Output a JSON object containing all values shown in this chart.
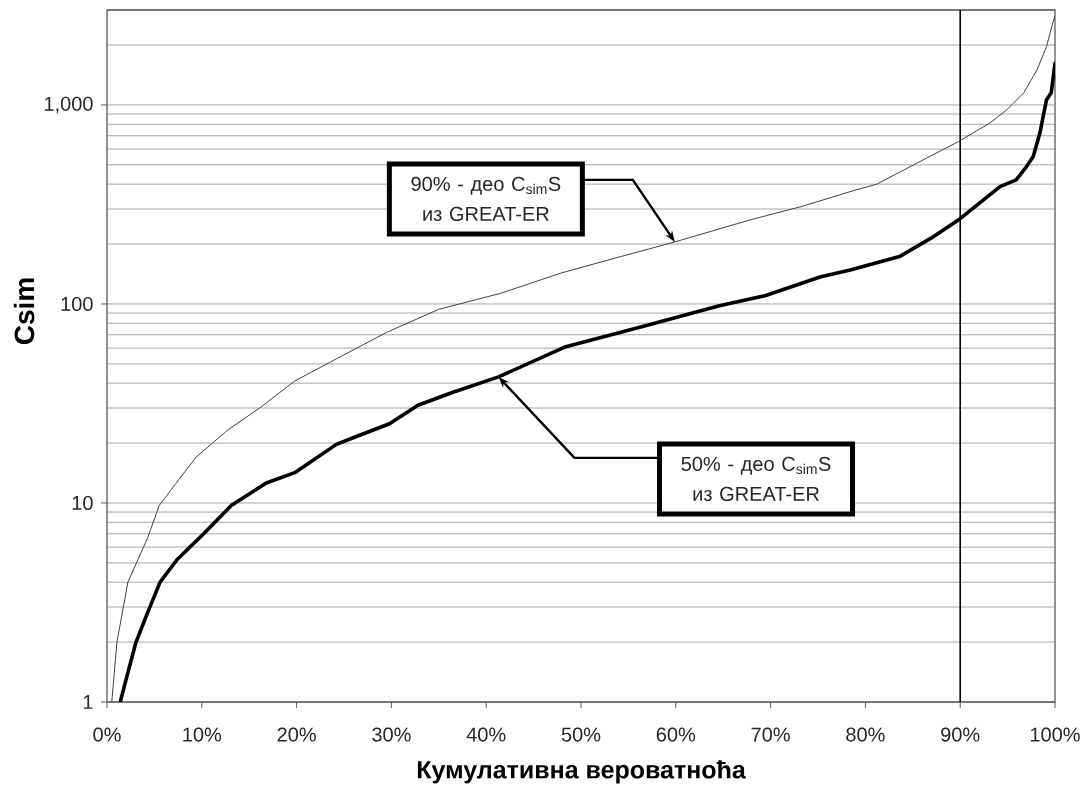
{
  "chart_data": {
    "type": "line",
    "xlabel": "Кумулативна вероватноћа",
    "ylabel": "Csim",
    "xlim": [
      0,
      100
    ],
    "ylim": [
      1,
      3000
    ],
    "log": "y",
    "grid": "y",
    "xticks": [
      {
        "value": 0,
        "label": "0%"
      },
      {
        "value": 10,
        "label": "10%"
      },
      {
        "value": 20,
        "label": "20%"
      },
      {
        "value": 30,
        "label": "30%"
      },
      {
        "value": 40,
        "label": "40%"
      },
      {
        "value": 50,
        "label": "50%"
      },
      {
        "value": 60,
        "label": "60%"
      },
      {
        "value": 70,
        "label": "70%"
      },
      {
        "value": 80,
        "label": "80%"
      },
      {
        "value": 90,
        "label": "90%"
      },
      {
        "value": 100,
        "label": "100%"
      }
    ],
    "yticks": [
      1,
      10,
      100,
      {
        "value": 1000,
        "label": "1,000"
      }
    ],
    "series": [
      {
        "color": "#404040",
        "x": [
          0.5,
          1.05,
          2.2,
          4.3,
          5.5,
          7.2,
          9.4,
          12.8,
          16.1,
          19.8,
          24.2,
          29.5,
          35,
          41.5,
          47.9,
          53.8,
          59.9,
          67.9,
          73.4,
          78.4,
          81.2,
          85.4,
          89.8,
          93.1,
          94.9,
          96.7,
          98.1,
          99.1,
          99.65,
          100
        ],
        "values": [
          1,
          2,
          4,
          6.7,
          9.7,
          12.4,
          17,
          23.4,
          30,
          41,
          53,
          72,
          94,
          113,
          143,
          171,
          205,
          265,
          310,
          367,
          400,
          509,
          654,
          809,
          944,
          1150,
          1500,
          1960,
          2470,
          2800
        ]
      },
      {
        "color": "#000000",
        "x": [
          1.4,
          1.96,
          3.06,
          4.4,
          5.6,
          7.4,
          10.2,
          13.1,
          16.8,
          19.8,
          24.2,
          26.1,
          29.8,
          32.8,
          36.5,
          41.3,
          48.4,
          56.5,
          64.6,
          69.4,
          75.3,
          78.4,
          83.6,
          87.2,
          89.8,
          94.2,
          95.9,
          97.0,
          97.7,
          98.4,
          99.1,
          99.6,
          100
        ],
        "values": [
          1,
          1.27,
          2.0,
          2.9,
          4,
          5.2,
          7,
          9.7,
          12.6,
          14.2,
          19.7,
          21.4,
          25,
          31,
          36,
          43,
          61,
          77,
          98,
          110,
          137,
          148,
          173,
          218,
          264,
          389,
          420,
          490,
          550,
          720,
          1060,
          1150,
          1620
        ]
      }
    ],
    "ref_lines": [
      {
        "axis": "x",
        "value": 90,
        "color": "#000000"
      }
    ],
    "annotations": [
      {
        "text": "90% - део C$_{sim}$S из GREAT-ER",
        "x": 59.9,
        "y": 205
      },
      {
        "text": "50% - део C$_{sim}$S из GREAT-ER",
        "x": 41.3,
        "y": 43
      }
    ]
  }
}
